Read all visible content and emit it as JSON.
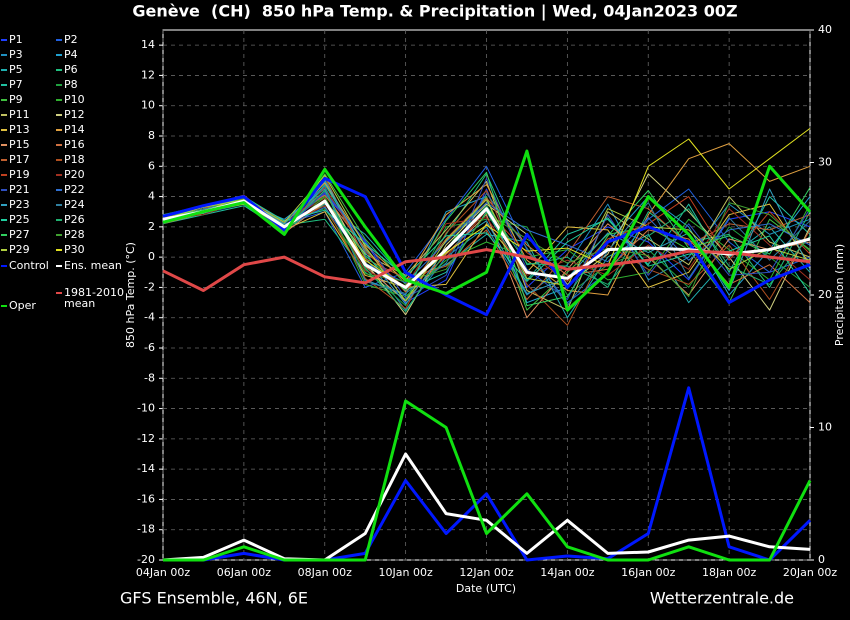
{
  "chart_data": {
    "type": "line",
    "title": "Genève  (CH)  850 hPa Temp. & Precipitation | Wed, 04Jan2023 00Z",
    "source_left": "GFS Ensemble, 46N, 6E",
    "source_right": "Wetterzentrale.de",
    "xlabel": "Date (UTC)",
    "ylabel": "850 hPa Temp. (°C)",
    "y2label": "Precipitation (mm)",
    "x": [
      "04Jan 00z",
      null,
      "06Jan 00z",
      null,
      "08Jan 00z",
      null,
      "10Jan 00z",
      null,
      "12Jan 00z",
      null,
      "14Jan 00z",
      null,
      "16Jan 00z",
      null,
      "18Jan 00z",
      null,
      "20Jan 00z"
    ],
    "ylim": [
      -20,
      15
    ],
    "yticks": [
      -20,
      -18,
      -16,
      -14,
      -12,
      -10,
      -8,
      -6,
      -4,
      -2,
      0,
      2,
      4,
      6,
      8,
      10,
      12,
      14
    ],
    "y2lim": [
      0,
      40
    ],
    "y2ticks": [
      0,
      10,
      20,
      30,
      40
    ],
    "grid": true,
    "series": [
      {
        "name": "P1",
        "color": "#2040ff",
        "linewidth": 1,
        "values": [
          2.6,
          3.1,
          3.9,
          1.9,
          4.2,
          1.0,
          -3.0,
          -1.5,
          4.5,
          -2.0,
          0.5,
          2.0,
          1.0,
          -1.5,
          2.5,
          3.0,
          2.0
        ]
      },
      {
        "name": "P2",
        "color": "#2060e0",
        "linewidth": 1,
        "values": [
          2.4,
          2.9,
          3.5,
          2.2,
          3.0,
          -2.0,
          -1.0,
          2.5,
          6.0,
          0.5,
          -3.0,
          -1.0,
          2.5,
          4.5,
          1.0,
          -1.0,
          0.0
        ]
      },
      {
        "name": "P3",
        "color": "#2090c0",
        "linewidth": 1,
        "values": [
          2.7,
          3.3,
          4.1,
          1.5,
          5.0,
          0.0,
          -3.5,
          0.0,
          2.0,
          -2.5,
          -0.5,
          3.5,
          -1.5,
          0.0,
          3.5,
          1.5,
          2.5
        ]
      },
      {
        "name": "P4",
        "color": "#20a0d0",
        "linewidth": 1,
        "values": [
          2.3,
          3.0,
          3.6,
          2.5,
          4.5,
          -1.5,
          -2.5,
          3.0,
          4.0,
          -3.0,
          -2.0,
          1.0,
          4.0,
          2.0,
          -2.5,
          0.5,
          4.0
        ]
      },
      {
        "name": "P5",
        "color": "#20b0b0",
        "linewidth": 1,
        "values": [
          2.5,
          3.2,
          3.8,
          1.8,
          3.5,
          1.5,
          -1.5,
          -0.5,
          1.5,
          1.0,
          -4.0,
          0.0,
          1.5,
          -3.0,
          0.0,
          2.0,
          -1.0
        ]
      },
      {
        "name": "P6",
        "color": "#20c080",
        "linewidth": 1,
        "values": [
          2.8,
          3.4,
          4.0,
          2.1,
          2.5,
          -1.0,
          -2.8,
          1.5,
          5.5,
          -0.5,
          0.0,
          -2.0,
          3.0,
          1.0,
          1.5,
          -2.0,
          3.0
        ]
      },
      {
        "name": "P7",
        "color": "#20c0a0",
        "linewidth": 1,
        "values": [
          2.2,
          2.8,
          3.4,
          1.7,
          4.8,
          0.5,
          -2.2,
          -1.0,
          3.0,
          -1.5,
          1.5,
          2.5,
          -0.5,
          3.5,
          -1.0,
          4.0,
          1.5
        ]
      },
      {
        "name": "P8",
        "color": "#20a040",
        "linewidth": 1,
        "values": [
          2.6,
          3.1,
          3.7,
          2.3,
          3.2,
          -0.8,
          -3.2,
          2.0,
          2.5,
          2.0,
          -2.5,
          -0.5,
          0.5,
          -2.0,
          2.0,
          0.0,
          -2.0
        ]
      },
      {
        "name": "P9",
        "color": "#40c040",
        "linewidth": 1,
        "values": [
          2.4,
          3.0,
          3.9,
          1.6,
          5.5,
          1.2,
          -1.8,
          0.5,
          4.0,
          -3.5,
          -1.0,
          1.5,
          2.0,
          0.5,
          -3.0,
          2.5,
          0.5
        ]
      },
      {
        "name": "P10",
        "color": "#30b030",
        "linewidth": 1,
        "values": [
          2.7,
          3.3,
          3.6,
          2.4,
          4.0,
          -1.8,
          -2.6,
          -0.2,
          1.0,
          0.0,
          0.5,
          -1.5,
          -1.0,
          2.5,
          0.5,
          -1.5,
          3.5
        ]
      },
      {
        "name": "P11",
        "color": "#c0c060",
        "linewidth": 1,
        "values": [
          2.5,
          2.9,
          3.8,
          1.9,
          3.8,
          0.2,
          -1.2,
          1.8,
          5.0,
          -2.2,
          -3.5,
          3.0,
          1.2,
          -0.5,
          4.0,
          1.0,
          0.0
        ]
      },
      {
        "name": "P12",
        "color": "#d0d080",
        "linewidth": 1,
        "values": [
          2.3,
          3.2,
          3.5,
          2.0,
          4.4,
          -0.3,
          -3.8,
          0.8,
          3.5,
          1.5,
          -1.8,
          0.2,
          5.5,
          3.0,
          0.0,
          -3.5,
          2.0
        ]
      },
      {
        "name": "P13",
        "color": "#e0c040",
        "linewidth": 1,
        "values": [
          2.6,
          3.0,
          4.0,
          1.8,
          3.0,
          -1.2,
          -2.0,
          -1.8,
          2.2,
          -1.0,
          2.0,
          1.8,
          -2.0,
          -1.0,
          2.8,
          3.5,
          -0.5
        ]
      },
      {
        "name": "P14",
        "color": "#e0a040",
        "linewidth": 1,
        "values": [
          2.4,
          3.4,
          3.7,
          2.2,
          4.9,
          0.8,
          -1.6,
          2.8,
          4.8,
          -0.2,
          -2.2,
          -2.5,
          2.8,
          6.5,
          7.5,
          5.0,
          6.0
        ]
      },
      {
        "name": "P15",
        "color": "#e09060",
        "linewidth": 1,
        "values": [
          2.8,
          3.1,
          3.6,
          1.6,
          3.6,
          -0.6,
          -2.9,
          0.2,
          2.8,
          -4.0,
          -0.8,
          2.2,
          0.0,
          -2.5,
          1.2,
          0.5,
          1.0
        ]
      },
      {
        "name": "P16",
        "color": "#d07040",
        "linewidth": 1,
        "values": [
          2.2,
          2.9,
          3.9,
          2.4,
          4.1,
          0.6,
          -2.3,
          1.2,
          3.9,
          0.8,
          -1.2,
          -0.8,
          1.8,
          1.2,
          -1.8,
          -0.5,
          -3.0
        ]
      },
      {
        "name": "P17",
        "color": "#c06030",
        "linewidth": 1,
        "values": [
          2.5,
          3.3,
          3.8,
          1.7,
          5.3,
          -0.1,
          -1.4,
          -0.6,
          1.8,
          -2.8,
          0.2,
          4.0,
          3.2,
          0.8,
          2.2,
          1.8,
          2.8
        ]
      },
      {
        "name": "P18",
        "color": "#b05020",
        "linewidth": 1,
        "values": [
          2.7,
          3.0,
          3.5,
          2.1,
          3.4,
          -1.4,
          -3.4,
          1.6,
          4.4,
          -1.8,
          -4.5,
          0.8,
          -0.8,
          -1.8,
          0.8,
          -2.8,
          1.8
        ]
      },
      {
        "name": "P19",
        "color": "#c04020",
        "linewidth": 1,
        "values": [
          2.3,
          3.2,
          4.1,
          1.9,
          4.6,
          0.4,
          -2.1,
          0.0,
          3.1,
          0.3,
          -1.6,
          1.2,
          2.2,
          4.0,
          -0.2,
          3.0,
          0.2
        ]
      },
      {
        "name": "P20",
        "color": "#a03020",
        "linewidth": 1,
        "values": [
          2.6,
          2.8,
          3.7,
          2.3,
          3.9,
          -0.9,
          -1.9,
          2.2,
          2.6,
          -1.2,
          -0.2,
          -1.2,
          0.8,
          -0.8,
          3.2,
          0.8,
          -1.5
        ]
      },
      {
        "name": "P21",
        "color": "#3050c0",
        "linewidth": 1,
        "values": [
          2.4,
          3.1,
          3.6,
          1.8,
          4.3,
          1.1,
          -2.7,
          -1.2,
          5.2,
          -0.8,
          -2.8,
          2.8,
          -1.2,
          2.2,
          -1.2,
          -1.0,
          3.2
        ]
      },
      {
        "name": "P22",
        "color": "#3070d0",
        "linewidth": 1,
        "values": [
          2.5,
          3.3,
          3.9,
          2.0,
          3.3,
          -0.4,
          -1.7,
          1.0,
          3.6,
          1.8,
          0.8,
          -0.3,
          2.6,
          -0.2,
          1.8,
          2.2,
          0.8
        ]
      },
      {
        "name": "P23",
        "color": "#30a0c0",
        "linewidth": 1,
        "values": [
          2.8,
          3.0,
          3.8,
          2.2,
          5.1,
          0.3,
          -3.1,
          0.6,
          2.4,
          -2.4,
          -1.4,
          1.6,
          0.3,
          1.6,
          -2.2,
          4.5,
          -0.8
        ]
      },
      {
        "name": "P24",
        "color": "#3080a0",
        "linewidth": 1,
        "values": [
          2.2,
          3.2,
          3.5,
          1.6,
          4.7,
          -1.6,
          -2.4,
          -0.4,
          4.2,
          0.6,
          -3.2,
          0.4,
          3.6,
          -1.4,
          2.6,
          -0.2,
          2.4
        ]
      },
      {
        "name": "P25",
        "color": "#20d0a0",
        "linewidth": 1,
        "values": [
          2.6,
          2.9,
          4.0,
          2.4,
          3.1,
          0.9,
          -1.3,
          1.4,
          1.6,
          -1.6,
          1.0,
          2.6,
          -0.6,
          0.2,
          0.4,
          1.4,
          -2.4
        ]
      },
      {
        "name": "P26",
        "color": "#20b070",
        "linewidth": 1,
        "values": [
          2.4,
          3.4,
          3.7,
          1.9,
          4.4,
          -0.7,
          -3.6,
          0.4,
          3.4,
          -0.4,
          -0.6,
          -1.8,
          1.4,
          3.2,
          -0.6,
          -1.8,
          1.4
        ]
      },
      {
        "name": "P27",
        "color": "#30d060",
        "linewidth": 1,
        "values": [
          2.7,
          3.1,
          3.6,
          2.1,
          3.7,
          0.1,
          -2.2,
          2.4,
          5.6,
          -3.2,
          -2.6,
          1.4,
          4.4,
          0.6,
          1.4,
          0.2,
          4.6
        ]
      },
      {
        "name": "P28",
        "color": "#40a030",
        "linewidth": 1,
        "values": [
          2.3,
          3.0,
          3.9,
          1.7,
          4.0,
          -1.1,
          -1.6,
          -0.8,
          2.9,
          1.2,
          -0.4,
          0.6,
          0.1,
          -2.6,
          3.6,
          2.8,
          0.4
        ]
      },
      {
        "name": "P29",
        "color": "#b0d040",
        "linewidth": 1,
        "values": [
          2.5,
          3.3,
          3.8,
          2.3,
          5.4,
          0.7,
          -2.9,
          1.1,
          3.8,
          -1.4,
          -1.9,
          3.2,
          2.0,
          1.8,
          -0.8,
          0.6,
          -0.2
        ]
      },
      {
        "name": "P30",
        "color": "#e0e020",
        "linewidth": 1,
        "values": [
          2.6,
          3.0,
          3.5,
          2.0,
          3.6,
          -0.2,
          -2.0,
          0.3,
          2.1,
          0.4,
          0.6,
          -0.6,
          6.0,
          7.8,
          4.5,
          6.5,
          8.5
        ]
      },
      {
        "name": "Control",
        "color": "#0018ff",
        "linewidth": 3,
        "values": [
          2.7,
          3.4,
          4.0,
          1.8,
          5.2,
          4.0,
          -1.0,
          -2.5,
          -3.8,
          1.5,
          -2.0,
          1.0,
          2.0,
          1.0,
          -3.0,
          -1.5,
          -0.5
        ],
        "precip": [
          0,
          0,
          0.5,
          0,
          0,
          0.5,
          6,
          2,
          5,
          0,
          0.3,
          0.1,
          2,
          13,
          1,
          0,
          3
        ]
      },
      {
        "name": "Ens. mean",
        "color": "#ffffff",
        "linewidth": 3,
        "values": [
          2.5,
          3.0,
          3.7,
          2.0,
          3.7,
          -0.5,
          -2.0,
          0.5,
          3.2,
          -1.0,
          -1.4,
          0.5,
          0.6,
          0.5,
          0.2,
          0.5,
          1.2
        ],
        "precip": [
          0,
          0.2,
          1.5,
          0.1,
          0,
          2.0,
          8,
          3.5,
          3.0,
          0.5,
          3.0,
          0.5,
          0.6,
          1.5,
          1.8,
          1.0,
          0.8
        ]
      },
      {
        "name": "1981-2010 mean",
        "color": "#e04848",
        "linewidth": 3,
        "values": [
          -0.9,
          -2.2,
          -0.5,
          0.0,
          -1.3,
          -1.7,
          -0.3,
          0.0,
          0.5,
          0.0,
          -0.8,
          -0.5,
          -0.2,
          0.4,
          0.3,
          0.0,
          -0.3
        ]
      },
      {
        "name": "Oper",
        "color": "#10e010",
        "linewidth": 3,
        "values": [
          2.3,
          3.0,
          3.6,
          1.5,
          5.8,
          2.0,
          -1.5,
          -2.4,
          -1.0,
          7.0,
          -3.5,
          -1.0,
          4.0,
          1.5,
          -2.0,
          6.0,
          3.0
        ],
        "precip": [
          0,
          0,
          1,
          0,
          0,
          0,
          12,
          10,
          2,
          5,
          1,
          0,
          0,
          1,
          0,
          0,
          6
        ]
      }
    ]
  }
}
